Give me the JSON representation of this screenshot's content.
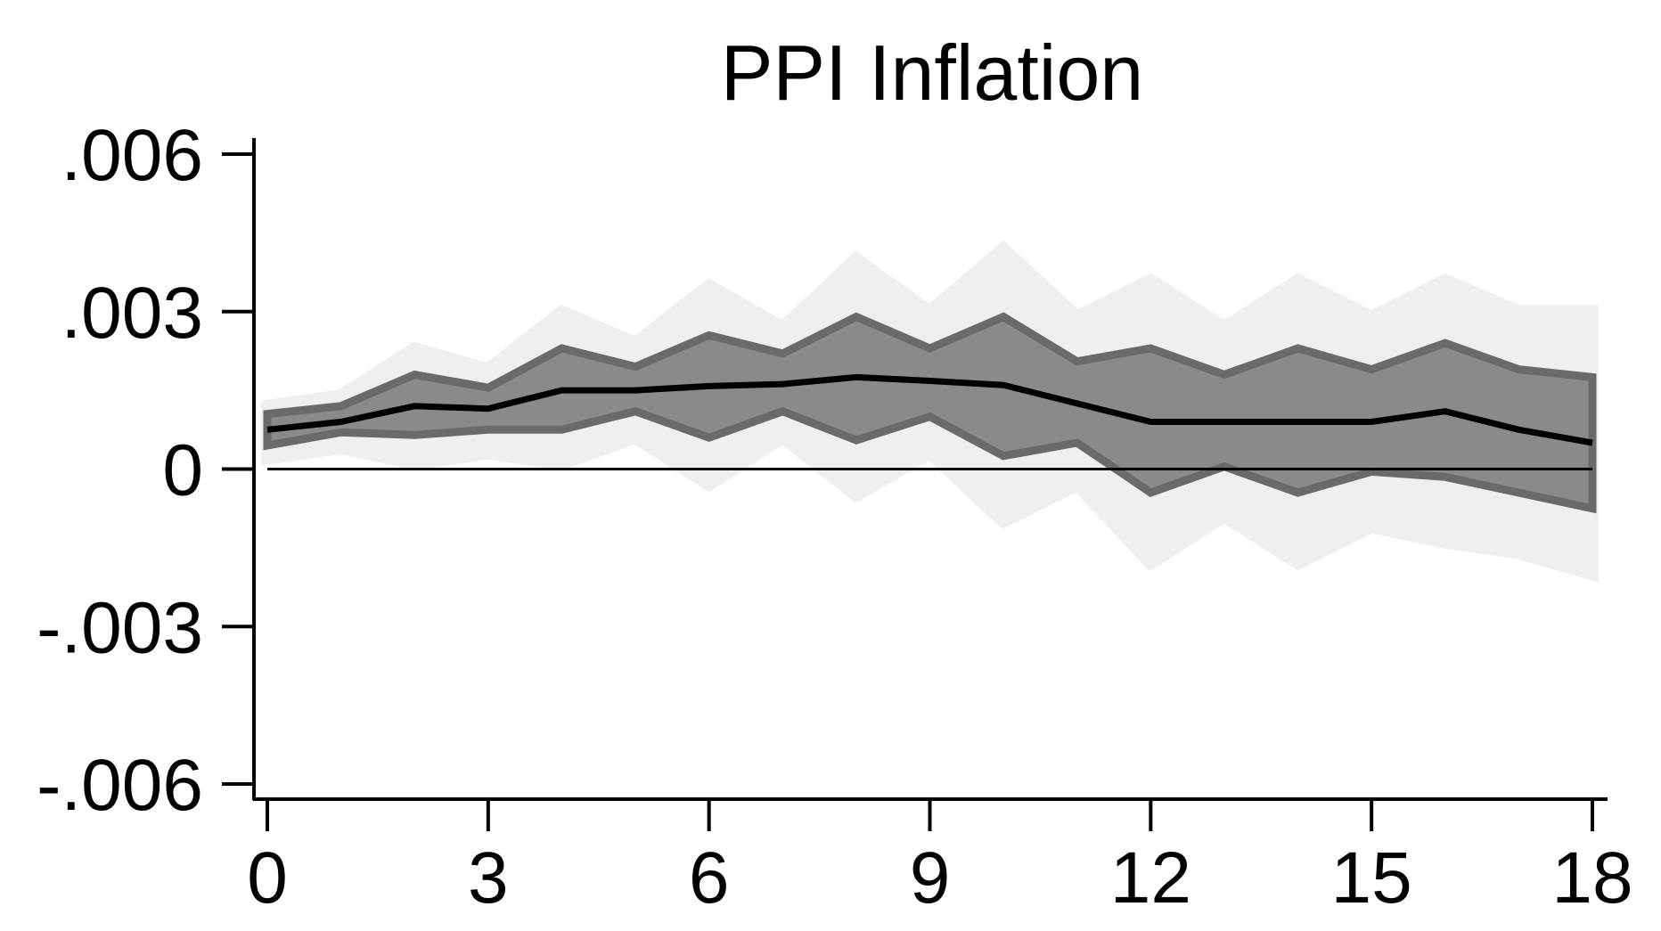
{
  "chart_data": {
    "type": "line",
    "title": "PPI Inflation",
    "xlabel": "",
    "ylabel": "",
    "xlim": [
      0,
      18
    ],
    "ylim": [
      -0.006,
      0.006
    ],
    "x_ticks": [
      0,
      3,
      6,
      9,
      12,
      15,
      18
    ],
    "x_tick_labels": [
      "0",
      "3",
      "6",
      "9",
      "12",
      "15",
      "18"
    ],
    "y_ticks": [
      0.006,
      0.003,
      0,
      -0.003,
      -0.006
    ],
    "y_tick_labels": [
      ".006",
      ".003",
      "0",
      "-.003",
      "-.006"
    ],
    "grid": false,
    "legend": "none",
    "x": [
      0,
      1,
      2,
      3,
      4,
      5,
      6,
      7,
      8,
      9,
      10,
      11,
      12,
      13,
      14,
      15,
      16,
      17,
      18
    ],
    "series": [
      {
        "role": "point_estimate",
        "values": [
          0.00075,
          0.0009,
          0.0012,
          0.00115,
          0.0015,
          0.0015,
          0.00158,
          0.00162,
          0.00175,
          0.00168,
          0.0016,
          0.00125,
          0.0009,
          0.0009,
          0.0009,
          0.0009,
          0.0011,
          0.00075,
          0.0005
        ]
      },
      {
        "role": "inner_band_upper",
        "values": [
          0.00105,
          0.0012,
          0.0018,
          0.00155,
          0.0023,
          0.00195,
          0.00255,
          0.0022,
          0.0029,
          0.0023,
          0.0029,
          0.00205,
          0.0023,
          0.0018,
          0.0023,
          0.0019,
          0.0024,
          0.0019,
          0.00175
        ]
      },
      {
        "role": "inner_band_lower",
        "values": [
          0.00045,
          0.0007,
          0.00065,
          0.00075,
          0.00075,
          0.0011,
          0.0006,
          0.0011,
          0.00055,
          0.001,
          0.00025,
          0.0005,
          -0.00045,
          5e-05,
          -0.00045,
          -5e-05,
          -0.00015,
          -0.00045,
          -0.00075
        ]
      },
      {
        "role": "outer_band_upper",
        "values": [
          0.0012,
          0.0014,
          0.0023,
          0.0019,
          0.003,
          0.0024,
          0.0035,
          0.0027,
          0.004,
          0.003,
          0.0042,
          0.0029,
          0.0036,
          0.0027,
          0.0036,
          0.0029,
          0.0036,
          0.003,
          0.003
        ]
      },
      {
        "role": "outer_band_lower",
        "values": [
          0.0002,
          0.0004,
          0.0001,
          0.0003,
          0.0001,
          0.0006,
          -0.0003,
          0.0006,
          -0.0005,
          0.0003,
          -0.001,
          -0.0003,
          -0.0018,
          -0.0009,
          -0.0018,
          -0.0011,
          -0.0014,
          -0.0016,
          -0.002
        ]
      }
    ],
    "zero_line": 0,
    "colors": {
      "outer_band": "#efefef",
      "inner_band_fill": "#8a8a8a",
      "inner_band_edge": "#6a6a6a",
      "line": "#000000",
      "axis": "#000000"
    }
  }
}
